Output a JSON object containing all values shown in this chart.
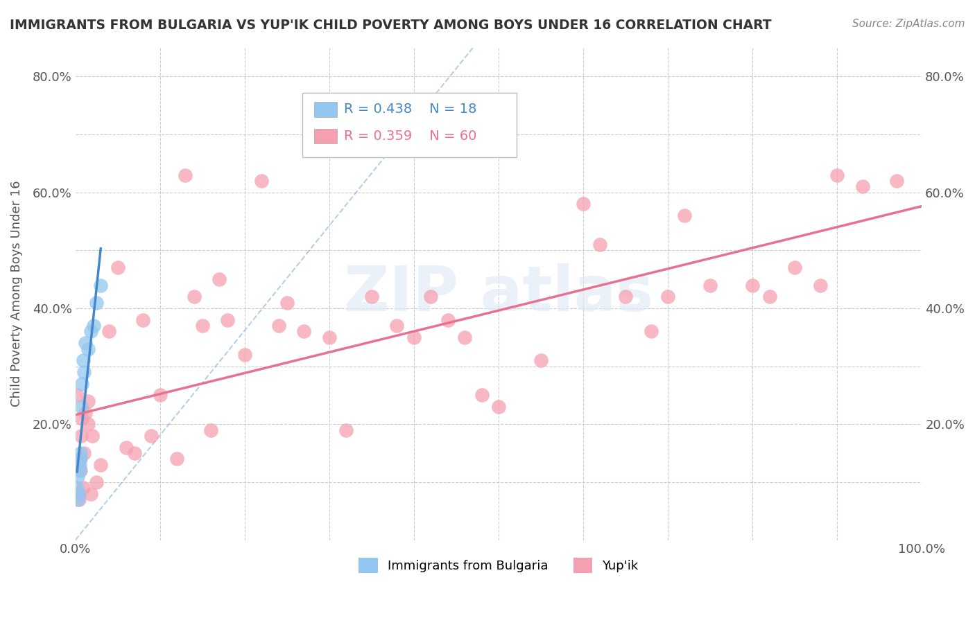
{
  "title": "IMMIGRANTS FROM BULGARIA VS YUP'IK CHILD POVERTY AMONG BOYS UNDER 16 CORRELATION CHART",
  "source": "Source: ZipAtlas.com",
  "ylabel": "Child Poverty Among Boys Under 16",
  "xlim": [
    0,
    1.0
  ],
  "ylim": [
    0,
    0.85
  ],
  "legend_r_blue": "R = 0.438",
  "legend_n_blue": "N = 18",
  "legend_r_pink": "R = 0.359",
  "legend_n_pink": "N = 60",
  "blue_color": "#93c6f0",
  "pink_color": "#f5a0b0",
  "blue_line_color": "#4488cc",
  "pink_line_color": "#e87090",
  "blue_scatter_x": [
    0.002,
    0.003,
    0.003,
    0.004,
    0.005,
    0.005,
    0.006,
    0.006,
    0.007,
    0.008,
    0.009,
    0.01,
    0.012,
    0.015,
    0.018,
    0.022,
    0.025,
    0.03
  ],
  "blue_scatter_y": [
    0.09,
    0.07,
    0.11,
    0.08,
    0.13,
    0.12,
    0.15,
    0.14,
    0.23,
    0.27,
    0.31,
    0.29,
    0.34,
    0.33,
    0.36,
    0.37,
    0.41,
    0.44
  ],
  "pink_scatter_x": [
    0.002,
    0.003,
    0.004,
    0.005,
    0.006,
    0.007,
    0.008,
    0.009,
    0.01,
    0.012,
    0.015,
    0.015,
    0.018,
    0.02,
    0.025,
    0.03,
    0.04,
    0.05,
    0.06,
    0.07,
    0.08,
    0.09,
    0.1,
    0.12,
    0.13,
    0.14,
    0.15,
    0.16,
    0.17,
    0.18,
    0.2,
    0.22,
    0.24,
    0.25,
    0.27,
    0.3,
    0.32,
    0.35,
    0.38,
    0.4,
    0.42,
    0.44,
    0.46,
    0.48,
    0.5,
    0.55,
    0.6,
    0.62,
    0.65,
    0.68,
    0.7,
    0.72,
    0.75,
    0.8,
    0.82,
    0.85,
    0.88,
    0.9,
    0.93,
    0.97
  ],
  "pink_scatter_y": [
    0.25,
    0.08,
    0.07,
    0.14,
    0.12,
    0.18,
    0.21,
    0.09,
    0.15,
    0.22,
    0.2,
    0.24,
    0.08,
    0.18,
    0.1,
    0.13,
    0.36,
    0.47,
    0.16,
    0.15,
    0.38,
    0.18,
    0.25,
    0.14,
    0.63,
    0.42,
    0.37,
    0.19,
    0.45,
    0.38,
    0.32,
    0.62,
    0.37,
    0.41,
    0.36,
    0.35,
    0.19,
    0.42,
    0.37,
    0.35,
    0.42,
    0.38,
    0.35,
    0.25,
    0.23,
    0.31,
    0.58,
    0.51,
    0.42,
    0.36,
    0.42,
    0.56,
    0.44,
    0.44,
    0.42,
    0.47,
    0.44,
    0.63,
    0.61,
    0.62
  ],
  "bg_color": "#ffffff",
  "grid_color": "#cccccc"
}
